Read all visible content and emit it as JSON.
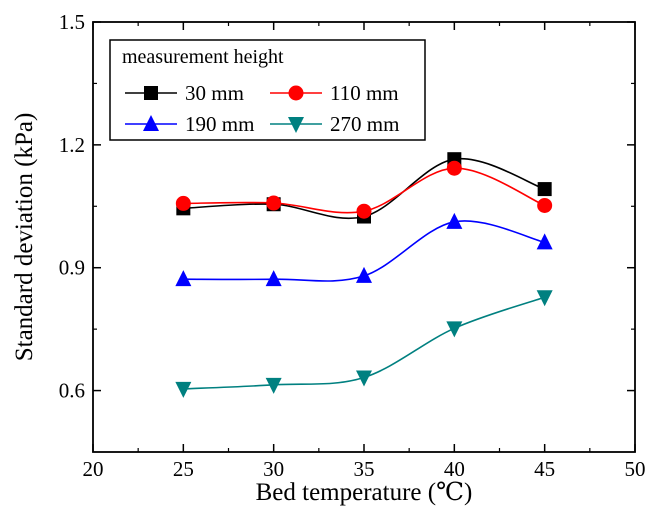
{
  "chart_data": {
    "type": "line",
    "xlabel": "Bed temperature (℃)",
    "ylabel": "Standard deviation (kPa)",
    "xlim": [
      20,
      50
    ],
    "ylim": [
      0.45,
      1.5
    ],
    "xticks": [
      20,
      25,
      30,
      35,
      40,
      45,
      50
    ],
    "xtick_labels": [
      "20",
      "25",
      "30",
      "35",
      "40",
      "45",
      "50"
    ],
    "yticks": [
      0.6,
      0.9,
      1.2,
      1.5
    ],
    "ytick_labels": [
      "0.6",
      "0.9",
      "1.2",
      "1.5"
    ],
    "grid": false,
    "legend": {
      "title": "measurement height",
      "placement": "top-left"
    },
    "x": [
      25,
      30,
      35,
      40,
      45
    ],
    "series": [
      {
        "name": "30 mm",
        "values": [
          1.045,
          1.055,
          1.025,
          1.165,
          1.092
        ],
        "color": "#000000",
        "marker": "square"
      },
      {
        "name": "110 mm",
        "values": [
          1.057,
          1.058,
          1.038,
          1.143,
          1.052
        ],
        "color": "#ff0000",
        "marker": "circle"
      },
      {
        "name": "190 mm",
        "values": [
          0.872,
          0.872,
          0.88,
          1.012,
          0.962
        ],
        "color": "#0000ff",
        "marker": "triangle-up"
      },
      {
        "name": "270 mm",
        "values": [
          0.604,
          0.614,
          0.632,
          0.752,
          0.828
        ],
        "color": "#008080",
        "marker": "triangle-down"
      }
    ]
  }
}
